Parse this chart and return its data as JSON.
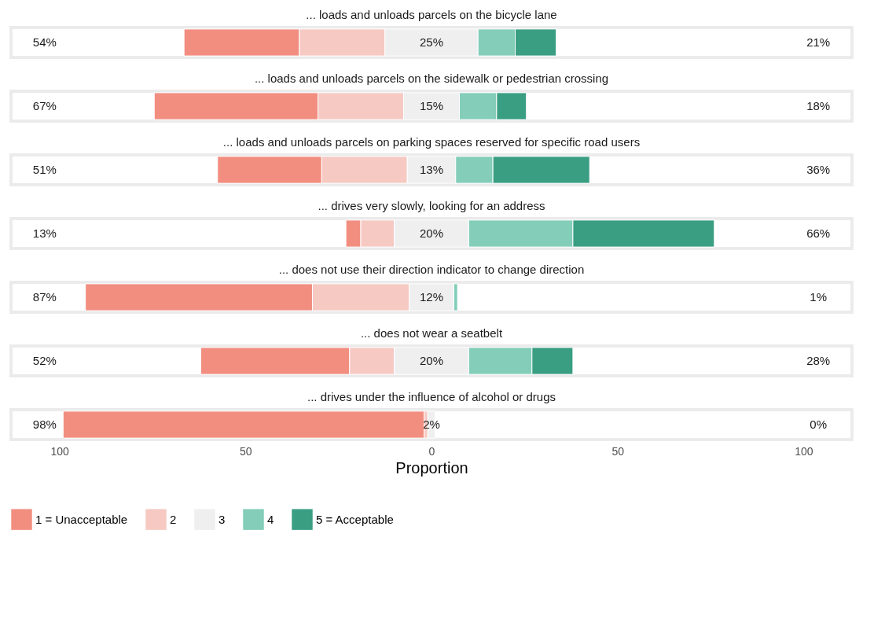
{
  "chart_data": {
    "type": "bar",
    "orientation": "horizontal",
    "categories": [
      "... loads and unloads parcels on the bicycle lane",
      "... loads and unloads parcels on the sidewalk or pedestrian crossing",
      "... loads and unloads parcels on parking spaces reserved for specific road users",
      "... drives very slowly, looking for an address",
      "... does not use their direction indicator to change direction",
      "... does not wear a seatbelt",
      "... drives under the influence of alcohol or drugs"
    ],
    "series": [
      {
        "name": "1 = Unacceptable",
        "color": "#f28e80",
        "base": [
          -66.5,
          -74.5,
          -57.5,
          -23,
          -93,
          -62,
          -99
        ],
        "values": [
          31,
          44,
          28,
          4,
          61,
          40,
          97
        ]
      },
      {
        "name": "2",
        "color": "#f6c9c3",
        "base": [
          -35.5,
          -30.5,
          -29.5,
          -19,
          -32,
          -22,
          -2
        ],
        "values": [
          23,
          23,
          23,
          9,
          26,
          12,
          1
        ]
      },
      {
        "name": "3",
        "color": "#efefef",
        "base": [
          -12.5,
          -7.5,
          -6.5,
          -10,
          -6,
          -10,
          -1
        ],
        "values": [
          25,
          15,
          13,
          20,
          12,
          20,
          2
        ]
      },
      {
        "name": "4",
        "color": "#83cdb9",
        "base": [
          12.5,
          7.5,
          6.5,
          10,
          6,
          10,
          null
        ],
        "values": [
          10,
          10,
          10,
          28,
          1,
          17,
          null
        ]
      },
      {
        "name": "5 = Acceptable",
        "color": "#3a9e83",
        "base": [
          22.5,
          17.5,
          16.5,
          38,
          null,
          27,
          null
        ],
        "values": [
          11,
          8,
          26,
          38,
          null,
          11,
          null
        ]
      }
    ],
    "xlabel": "Proportion",
    "xlim": [
      -113,
      113
    ],
    "xticks": [
      {
        "value": -100,
        "label": "100"
      },
      {
        "value": -50,
        "label": "50"
      },
      0,
      50,
      100
    ],
    "legend": "bottom",
    "grid": false,
    "annotations": [
      "54%",
      "25%",
      "21%",
      "67%",
      "15%",
      "18%",
      "51%",
      "13%",
      "36%",
      "13%",
      "20%",
      "66%",
      "87%",
      "12%",
      "1%",
      "52%",
      "20%",
      "28%",
      "98%",
      "2%",
      "0%"
    ]
  }
}
